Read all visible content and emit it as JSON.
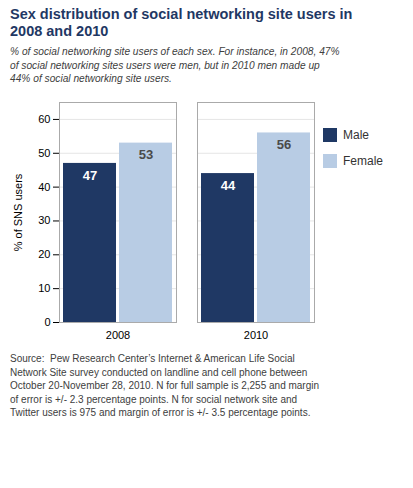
{
  "chart_data": {
    "type": "bar",
    "title": "Sex distribution of social networking site users in\n2008 and 2010",
    "subtitle": "% of social networking site users of each sex. For instance, in 2008, 47%\nof social networking sites users were men, but in 2010 men made up\n44% of social networking site users.",
    "source": "Source:  Pew Research Center’s Internet & American Life Social\nNetwork Site survey conducted on landline and cell phone between\nOctober 20-November 28, 2010. N for full sample is 2,255 and margin\nof error is +/- 2.3 percentage points. N for social network site and\nTwitter users is 975 and margin of error is +/- 3.5 percentage points.",
    "categories": [
      "2008",
      "2010"
    ],
    "series": [
      {
        "name": "Male",
        "color": "#1F3864",
        "values": [
          47,
          44
        ]
      },
      {
        "name": "Female",
        "color": "#B8CCE4",
        "values": [
          53,
          56
        ]
      }
    ],
    "ylabel": "% of SNS users",
    "ylim": [
      0,
      65
    ],
    "yticks": [
      0,
      10,
      20,
      30,
      40,
      50,
      60
    ],
    "grid": true,
    "legend": "right",
    "data_labels": true,
    "title_color": "#1F3864"
  }
}
